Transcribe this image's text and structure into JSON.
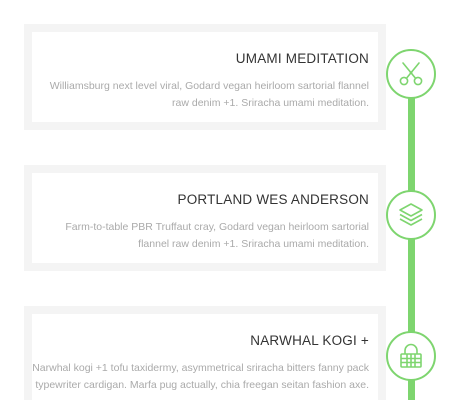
{
  "timeline": {
    "accent_color": "#7ed56f",
    "items": [
      {
        "title": "UMAMI MEDITATION",
        "text": "Williamsburg next level viral, Godard vegan heirloom sartorial flannel raw denim +1. Sriracha umami meditation.",
        "icon": "scissors-icon"
      },
      {
        "title": "PORTLAND WES ANDERSON",
        "text": "Farm-to-table PBR Truffaut cray, Godard vegan heirloom sartorial flannel raw denim +1. Sriracha umami meditation.",
        "icon": "layers-icon"
      },
      {
        "title": "NARWHAL KOGI +",
        "text": "Narwhal kogi +1 tofu taxidermy, asymmetrical sriracha bitters fanny pack typewriter cardigan. Marfa pug actually, chia freegan seitan fashion axe.",
        "icon": "padlock-icon"
      }
    ]
  }
}
